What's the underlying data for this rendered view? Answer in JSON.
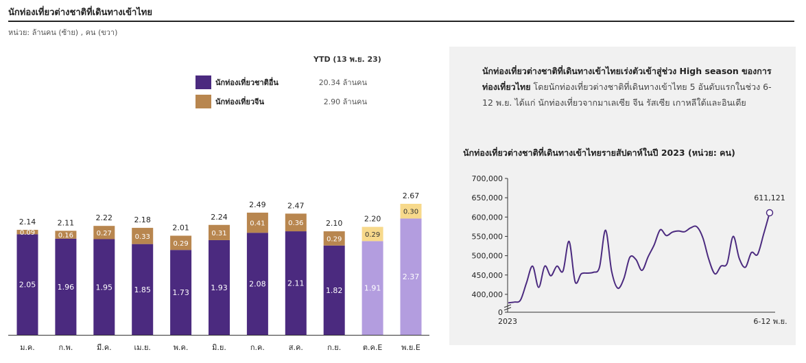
{
  "header": {
    "title": "นักท่องเที่ยวต่างชาติที่เดินทางเข้าไทย",
    "unit": "หน่วย:  ล้านคน (ซ้าย) , คน (ขวา)"
  },
  "panel": {
    "bold_text": "นักท่องเที่ยวต่างชาติที่เดินทางเข้าไทยเร่งตัวเข้าสู่ช่วง  High season ของการท่องเที่ยวไทย",
    "body_text": " โดยนักท่องเที่ยวต่างชาติที่เดินทางเข้าไทย 5 อันดับแรกในช่วง 6-12 พ.ย. ได้แก่ นักท่องเที่ยวจากมาเลเซีย จีน รัสเซีย เกาหลีใต้และอินเดีย",
    "chart_title": "นักท่องเที่ยวต่างชาติที่เดินทางเข้าไทยรายสัปดาห์ในปี  2023 (หน่วย: คน)"
  },
  "colors": {
    "other": "#4b2a7f",
    "china": "#b8864f",
    "other_est": "#b39ddf",
    "china_est": "#f7d98b"
  },
  "chart_data": [
    {
      "type": "bar",
      "stacked": true,
      "ytd_header": "YTD (13 พ.ย. 23)",
      "categories": [
        "ม.ค.",
        "ก.พ.",
        "มี.ค.",
        "เม.ย.",
        "พ.ค.",
        "มิ.ย.",
        "ก.ค.",
        "ส.ค.",
        "ก.ย.",
        "ต.ค.E",
        "พ.ย.E"
      ],
      "estimated_from_index": 9,
      "series": [
        {
          "name": "นักท่องเที่ยวชาติอื่น",
          "ytd": "20.34 ล้านคน",
          "values": [
            2.05,
            1.96,
            1.95,
            1.85,
            1.73,
            1.93,
            2.08,
            2.11,
            1.82,
            1.91,
            2.37
          ],
          "labels": [
            "2.05",
            "1.96",
            "1.95",
            "1.85",
            "1.73",
            "1.93",
            "2.08",
            "2.11",
            "1.82",
            "1.91",
            "2.37"
          ]
        },
        {
          "name": "นักท่องเที่ยวจีน",
          "ytd": "2.90 ล้านคน",
          "values": [
            0.09,
            0.16,
            0.27,
            0.33,
            0.29,
            0.31,
            0.41,
            0.36,
            0.29,
            0.29,
            0.3
          ],
          "labels": [
            "0.09",
            "0.16",
            "0.27",
            "0.33",
            "0.29",
            "0.31",
            "0.41",
            "0.36",
            "0.29",
            "0.29",
            "0.30"
          ]
        }
      ],
      "totals": [
        2.14,
        2.11,
        2.22,
        2.18,
        2.01,
        2.24,
        2.49,
        2.47,
        2.1,
        2.2,
        2.67
      ],
      "total_labels": [
        "2.14",
        "2.11",
        "2.22",
        "2.18",
        "2.01",
        "2.24",
        "2.49",
        "2.47",
        "2.10",
        "2.20",
        "2.67"
      ],
      "ylim": [
        0,
        2.8
      ]
    },
    {
      "type": "line",
      "x_labels": [
        "2023",
        "6-12 พ.ย."
      ],
      "ylim": [
        375000,
        700000
      ],
      "axis_break": true,
      "y_ticks": [
        0,
        400000,
        450000,
        500000,
        550000,
        600000,
        650000,
        700000
      ],
      "y_tick_labels": [
        "0",
        "400,000",
        "450,000",
        "500,000",
        "550,000",
        "600,000",
        "650,000",
        "700,000"
      ],
      "last_label": "611,121",
      "values": [
        378000,
        380000,
        385000,
        430000,
        473000,
        418000,
        473000,
        448000,
        473000,
        460000,
        537000,
        432000,
        453000,
        455000,
        457000,
        470000,
        566000,
        460000,
        416000,
        440000,
        496000,
        490000,
        462000,
        497000,
        528000,
        567000,
        552000,
        561000,
        564000,
        562000,
        572000,
        575000,
        547000,
        490000,
        453000,
        473000,
        480000,
        550000,
        493000,
        470000,
        508000,
        503000,
        555000,
        611121
      ]
    }
  ]
}
